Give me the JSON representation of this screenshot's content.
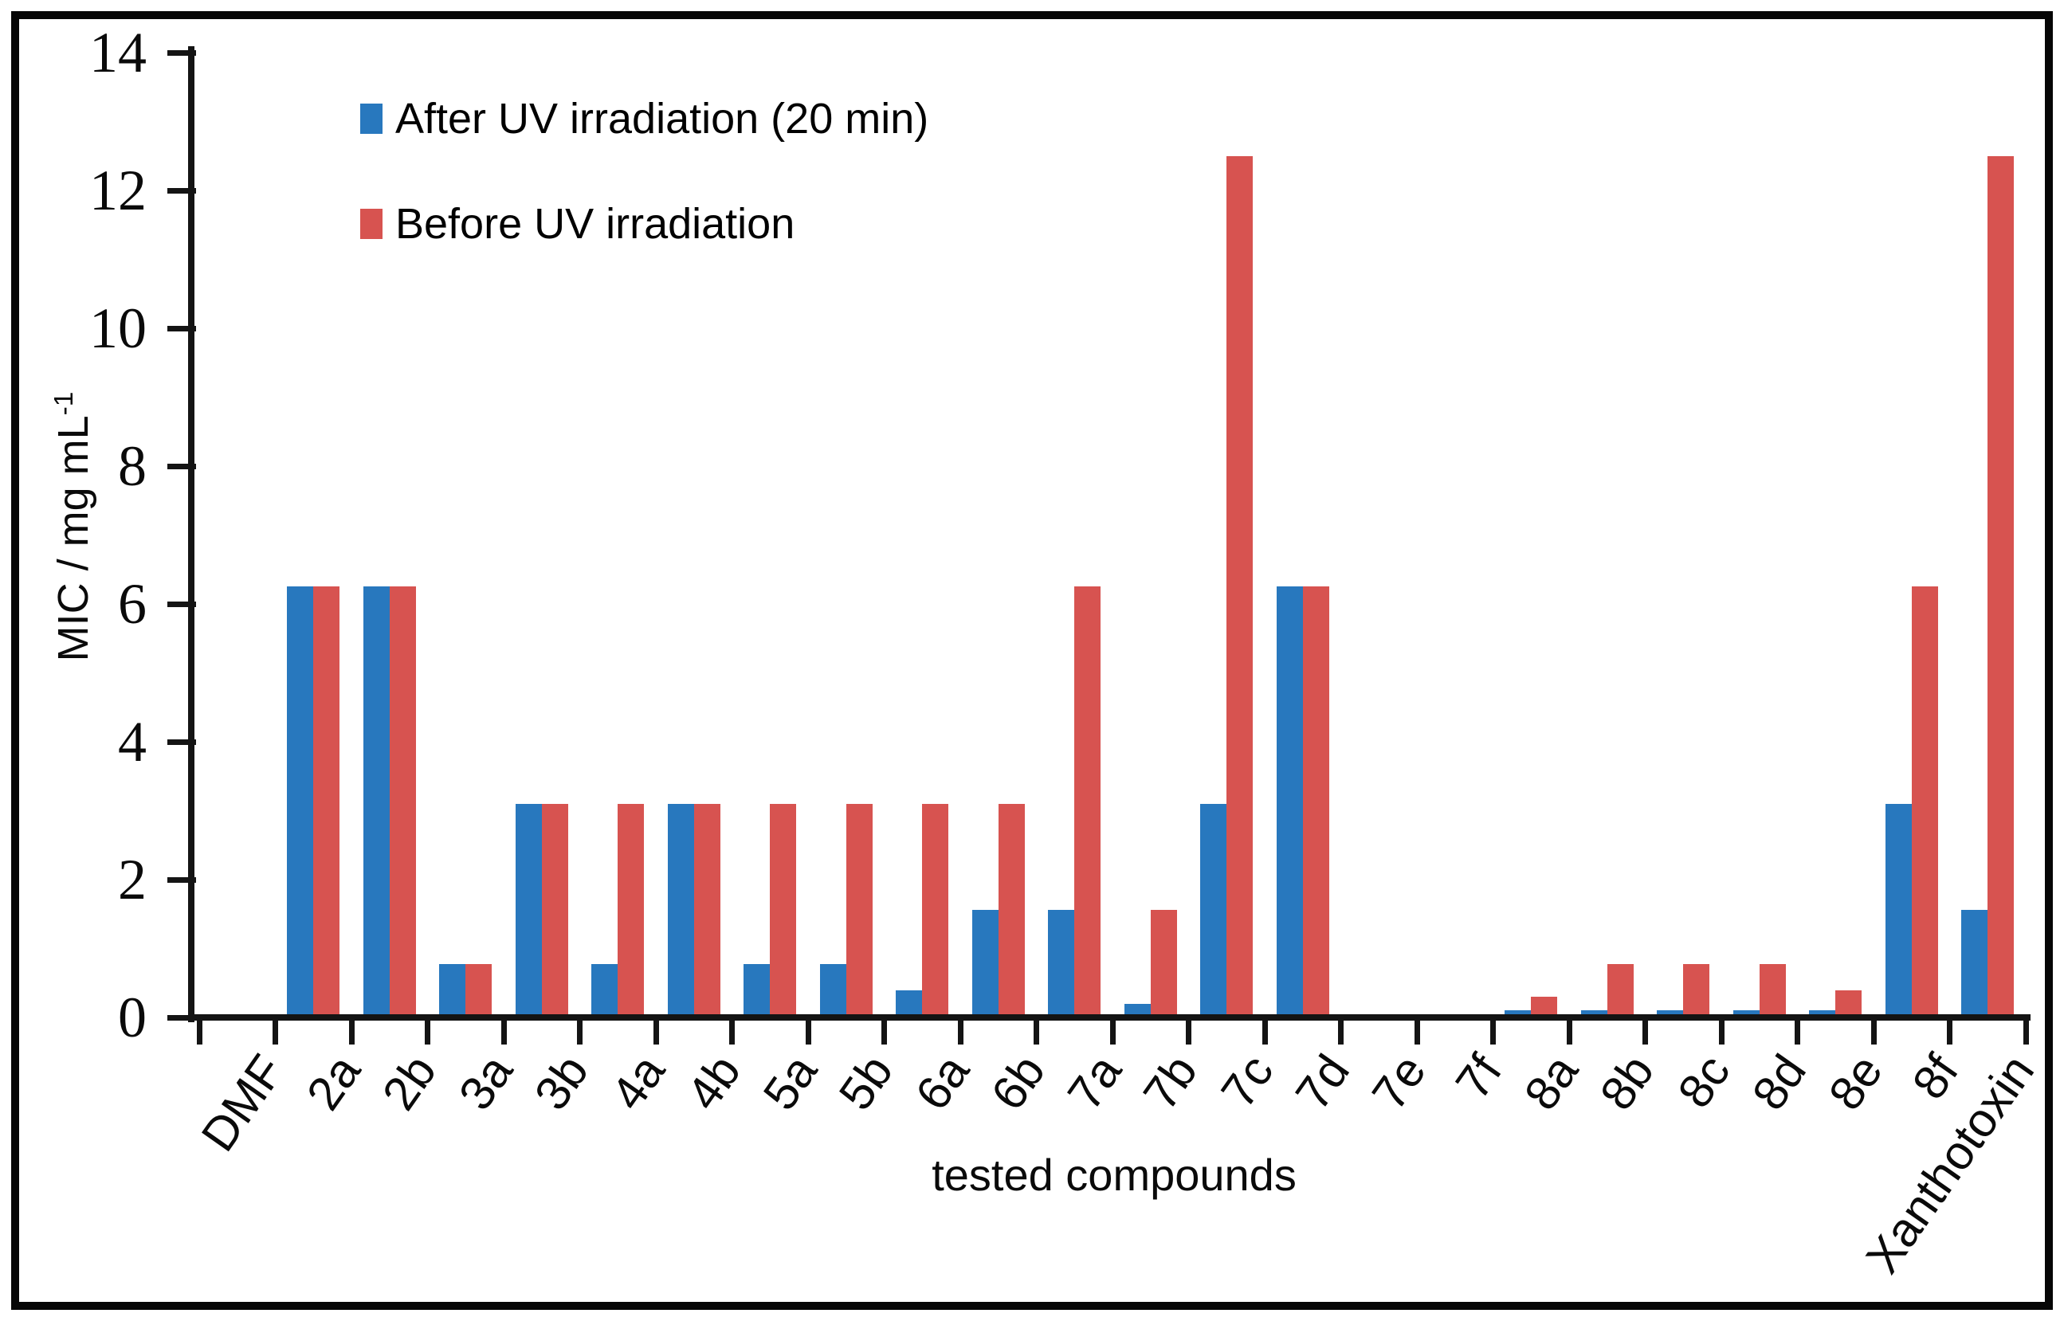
{
  "chart_data": {
    "type": "bar",
    "title": "",
    "xlabel": "tested compounds",
    "ylabel": "MIC / mg mL⁻¹",
    "ylabel_base": "MIC / mg mL",
    "ylabel_exponent": "-1",
    "ylim": [
      0,
      14
    ],
    "yticks": [
      0,
      2,
      4,
      6,
      8,
      10,
      12,
      14
    ],
    "grid": false,
    "legend_position": "top-left-inside",
    "categories": [
      "DMF",
      "2a",
      "2b",
      "3a",
      "3b",
      "4a",
      "4b",
      "5a",
      "5b",
      "6a",
      "6b",
      "7a",
      "7b",
      "7c",
      "7d",
      "7e",
      "7f",
      "8a",
      "8b",
      "8c",
      "8d",
      "8e",
      "8f",
      "Xanthotoxin"
    ],
    "series": [
      {
        "name": "After UV irradiation (20 min)",
        "color": "#2878BE",
        "values": [
          0,
          6.25,
          6.25,
          0.78,
          3.1,
          0.78,
          3.1,
          0.78,
          0.78,
          0.39,
          1.56,
          1.56,
          0.2,
          3.1,
          6.25,
          0,
          0,
          0.1,
          0.1,
          0.1,
          0.1,
          0.1,
          3.1,
          1.56
        ]
      },
      {
        "name": "Before UV irradiation",
        "color": "#D75350",
        "values": [
          0,
          6.25,
          6.25,
          0.78,
          3.1,
          3.1,
          3.1,
          3.1,
          3.1,
          3.1,
          3.1,
          6.25,
          1.56,
          12.5,
          6.25,
          0,
          0,
          0.3,
          0.78,
          0.78,
          0.78,
          0.39,
          6.25,
          12.5
        ]
      }
    ]
  }
}
